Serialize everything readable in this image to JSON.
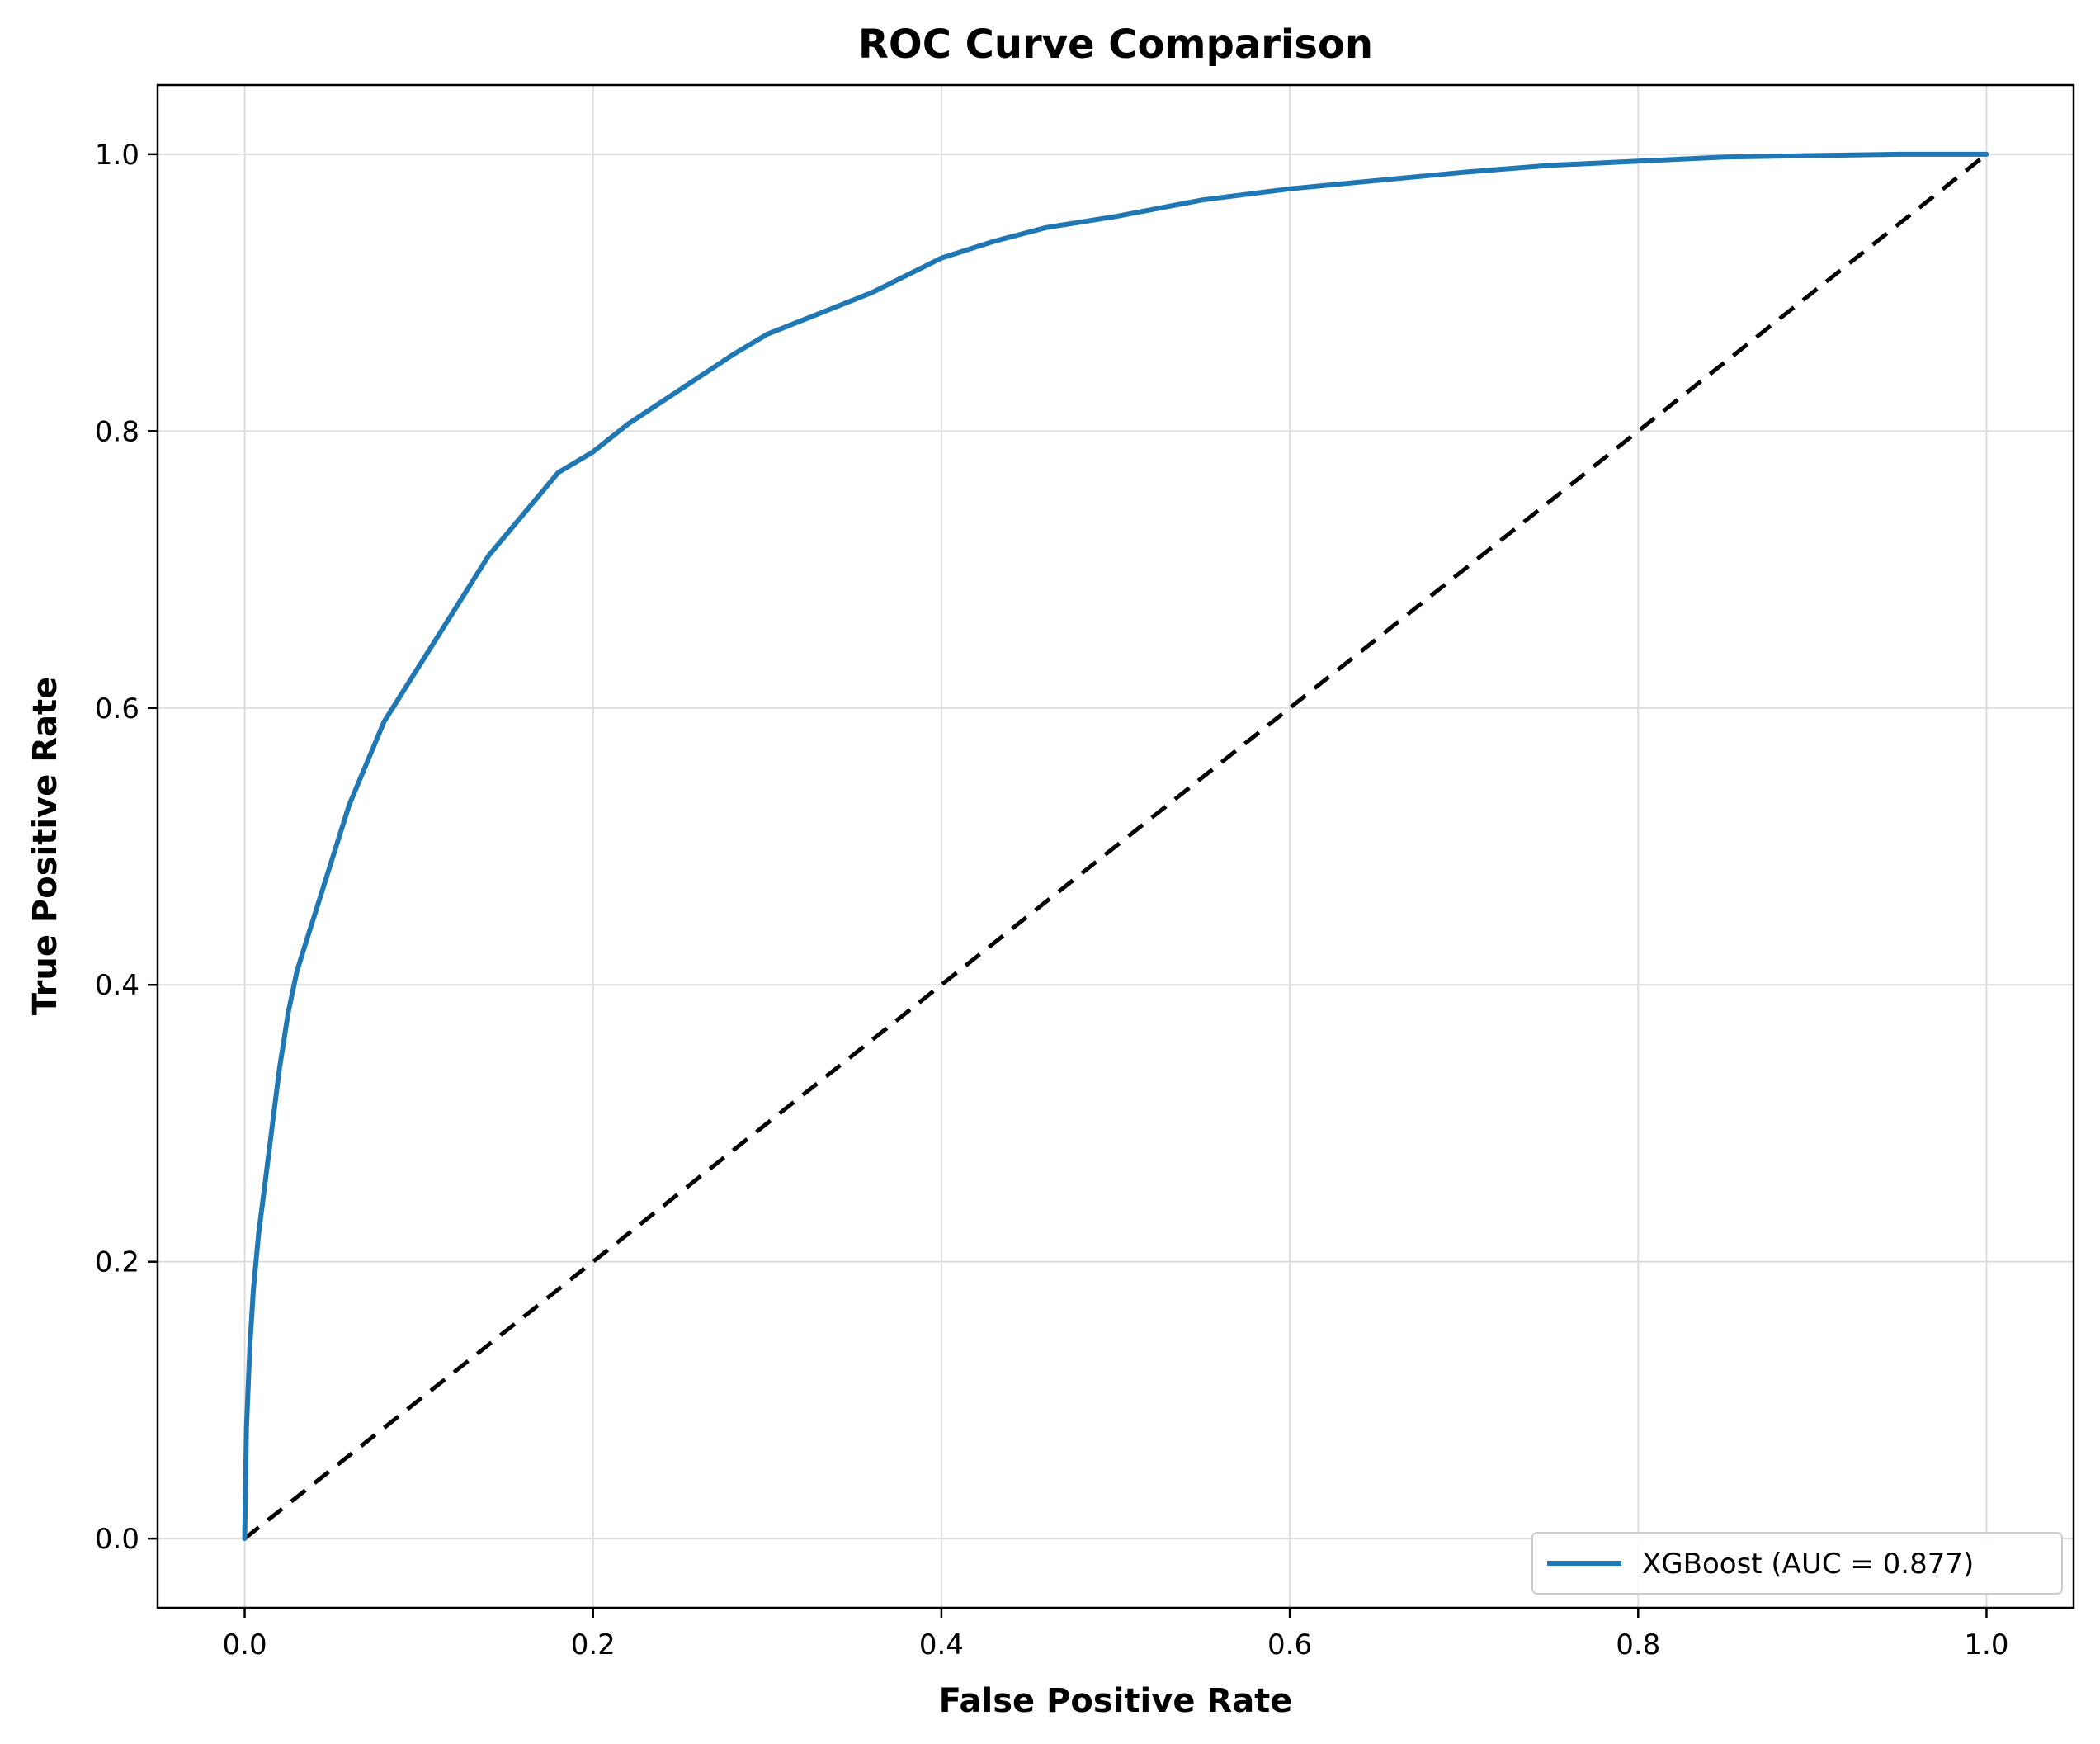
{
  "chart_data": {
    "type": "line",
    "title": "ROC Curve Comparison",
    "xlabel": "False Positive Rate",
    "ylabel": "True Positive Rate",
    "xlim": [
      -0.05,
      1.05
    ],
    "ylim": [
      -0.05,
      1.05
    ],
    "x_ticks": [
      "0.0",
      "0.2",
      "0.4",
      "0.6",
      "0.8",
      "1.0"
    ],
    "y_ticks": [
      "0.0",
      "0.2",
      "0.4",
      "0.6",
      "0.8",
      "1.0"
    ],
    "grid": true,
    "legend_position": "lower-right",
    "series": [
      {
        "name": "XGBoost (AUC = 0.877)",
        "color": "#1f77b4",
        "style": "solid",
        "x": [
          0.0,
          0.001,
          0.003,
          0.005,
          0.008,
          0.012,
          0.016,
          0.02,
          0.025,
          0.03,
          0.035,
          0.04,
          0.05,
          0.06,
          0.07,
          0.08,
          0.09,
          0.1,
          0.12,
          0.14,
          0.16,
          0.18,
          0.2,
          0.22,
          0.25,
          0.28,
          0.3,
          0.33,
          0.36,
          0.4,
          0.43,
          0.46,
          0.5,
          0.55,
          0.6,
          0.65,
          0.7,
          0.75,
          0.8,
          0.85,
          0.9,
          0.95,
          1.0
        ],
        "y": [
          0.0,
          0.08,
          0.14,
          0.18,
          0.22,
          0.26,
          0.3,
          0.34,
          0.38,
          0.41,
          0.43,
          0.45,
          0.49,
          0.53,
          0.56,
          0.59,
          0.61,
          0.63,
          0.67,
          0.71,
          0.74,
          0.77,
          0.785,
          0.805,
          0.83,
          0.855,
          0.87,
          0.885,
          0.9,
          0.925,
          0.937,
          0.947,
          0.955,
          0.967,
          0.975,
          0.981,
          0.987,
          0.992,
          0.995,
          0.998,
          0.999,
          1.0,
          1.0
        ]
      },
      {
        "name": "",
        "color": "#000000",
        "style": "dashed",
        "x": [
          0.0,
          1.0
        ],
        "y": [
          0.0,
          1.0
        ]
      }
    ]
  }
}
